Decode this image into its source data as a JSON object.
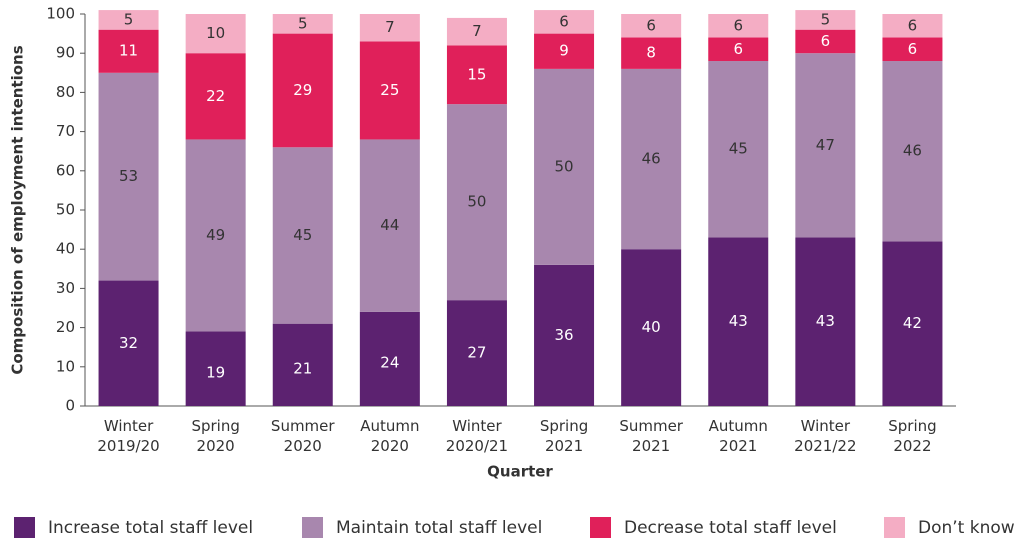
{
  "chart_data": {
    "type": "stacked-bar",
    "x_label": "Quarter",
    "y_label": "Composition of employment intentions",
    "categories": [
      "Winter 2019/20",
      "Spring 2020",
      "Summer 2020",
      "Autumn 2020",
      "Winter 2020/21",
      "Spring 2021",
      "Summer 2021",
      "Autumn 2021",
      "Winter 2021/22",
      "Spring 2022"
    ],
    "series": [
      {
        "name": "Increase total staff level",
        "color": "#5c2270",
        "values": [
          32,
          19,
          21,
          24,
          27,
          36,
          40,
          43,
          43,
          42
        ]
      },
      {
        "name": "Maintain total staff level",
        "color": "#a887ae",
        "values": [
          53,
          49,
          45,
          44,
          50,
          50,
          46,
          45,
          47,
          46
        ]
      },
      {
        "name": "Decrease total staff level",
        "color": "#e0205a",
        "values": [
          11,
          22,
          29,
          25,
          15,
          9,
          8,
          6,
          6,
          6
        ]
      },
      {
        "name": "Don’t know",
        "color": "#f4adc4",
        "values": [
          5,
          10,
          5,
          7,
          7,
          6,
          6,
          6,
          5,
          6
        ]
      }
    ],
    "ylim": [
      0,
      100
    ],
    "yticks": [
      0,
      10,
      20,
      30,
      40,
      50,
      60,
      70,
      80,
      90,
      100
    ]
  }
}
